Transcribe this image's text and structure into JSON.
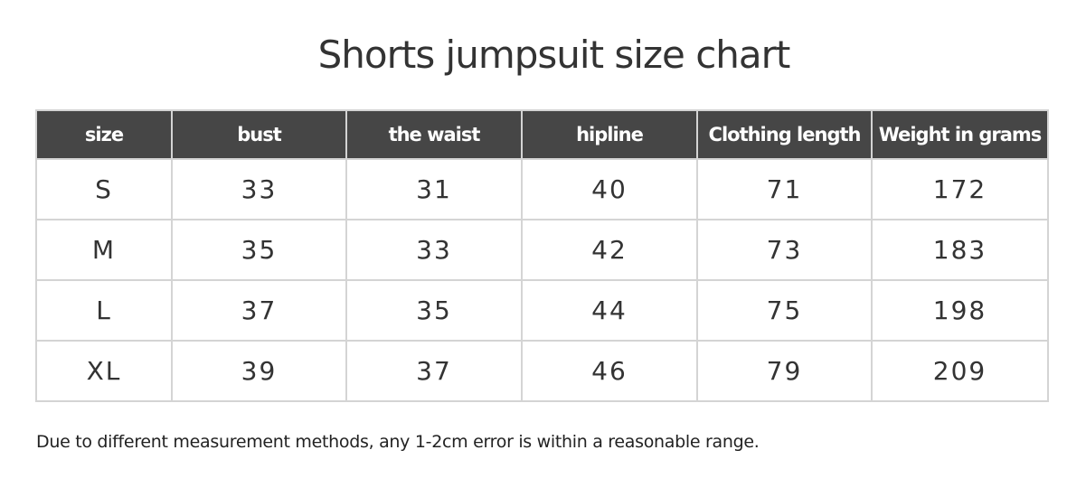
{
  "title": "Shorts jumpsuit size chart",
  "table": {
    "headers": [
      "size",
      "bust",
      "the waist",
      "hipline",
      "Clothing length",
      "Weight in grams"
    ],
    "rows": [
      [
        "S",
        "33",
        "31",
        "40",
        "71",
        "172"
      ],
      [
        "M",
        "35",
        "33",
        "42",
        "73",
        "183"
      ],
      [
        "L",
        "37",
        "35",
        "44",
        "75",
        "198"
      ],
      [
        "XL",
        "39",
        "37",
        "46",
        "79",
        "209"
      ]
    ]
  },
  "note": "Due to different measurement methods, any 1-2cm error is within a reasonable range.",
  "colors": {
    "header_bg": "#464646",
    "header_text": "#ffffff",
    "border": "#d4d4d4"
  }
}
